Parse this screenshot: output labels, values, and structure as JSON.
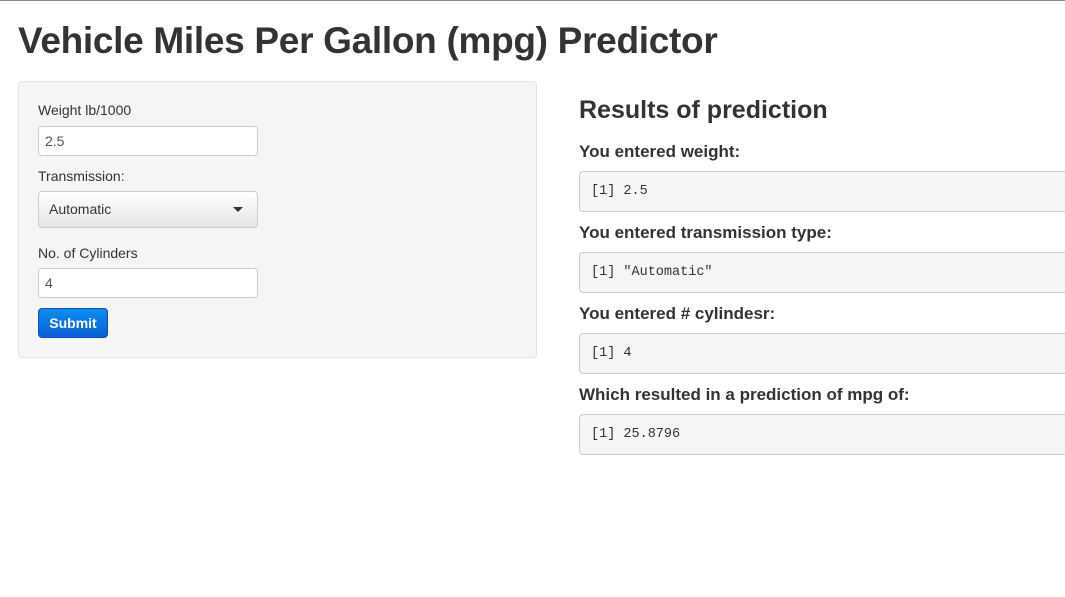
{
  "page": {
    "title": "Vehicle Miles Per Gallon (mpg) Predictor"
  },
  "sidebar": {
    "weight": {
      "label": "Weight lb/1000",
      "value": "2.5"
    },
    "transmission": {
      "label": "Transmission:",
      "selected": "Automatic"
    },
    "cylinders": {
      "label": "No. of Cylinders",
      "value": "4"
    },
    "submit_label": "Submit"
  },
  "results": {
    "title": "Results of prediction",
    "items": [
      {
        "label": "You entered weight:",
        "output": "[1] 2.5"
      },
      {
        "label": "You entered transmission type:",
        "output": "[1] \"Automatic\""
      },
      {
        "label": "You entered # cylindesr:",
        "output": "[1] 4"
      },
      {
        "label": "Which resulted in a prediction of mpg of:",
        "output": "[1] 25.8796"
      }
    ]
  },
  "colors": {
    "accent": "#0a5fd6",
    "panel_bg": "#f5f5f5",
    "text": "#333333"
  }
}
